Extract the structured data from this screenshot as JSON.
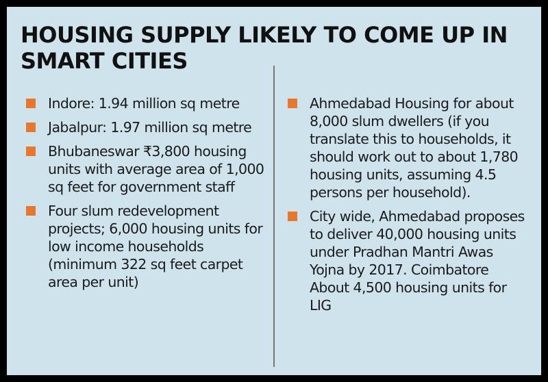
{
  "title": "HOUSING SUPPLY LIKELY TO COME UP IN SMART CITIES",
  "colors": {
    "frame": "#000000",
    "background": "#cfe3ec",
    "bullet": "#e8762b",
    "divider": "#777777",
    "text": "#1a1a1a"
  },
  "left_items": [
    {
      "text": "Indore: 1.94 million sq metre"
    },
    {
      "text": "Jabalpur: 1.97 million sq metre"
    },
    {
      "text": "Bhubaneswar ₹3,800 housing units with average area of 1,000 sq feet for government staff"
    },
    {
      "text": "Four slum redevelopment projects; 6,000 housing units for low income households (minimum 322 sq feet carpet area per unit)"
    }
  ],
  "right_items": [
    {
      "text": "Ahmedabad Housing for about 8,000 slum dwellers (if you translate this to households, it should work out to about 1,780 housing units, assuming 4.5 persons per household)."
    },
    {
      "text": "City wide, Ahmedabad proposes to deliver 40,000 housing units under Pradhan Mantri Awas Yojna by 2017. Coimbatore About 4,500 housing units for LIG"
    }
  ]
}
